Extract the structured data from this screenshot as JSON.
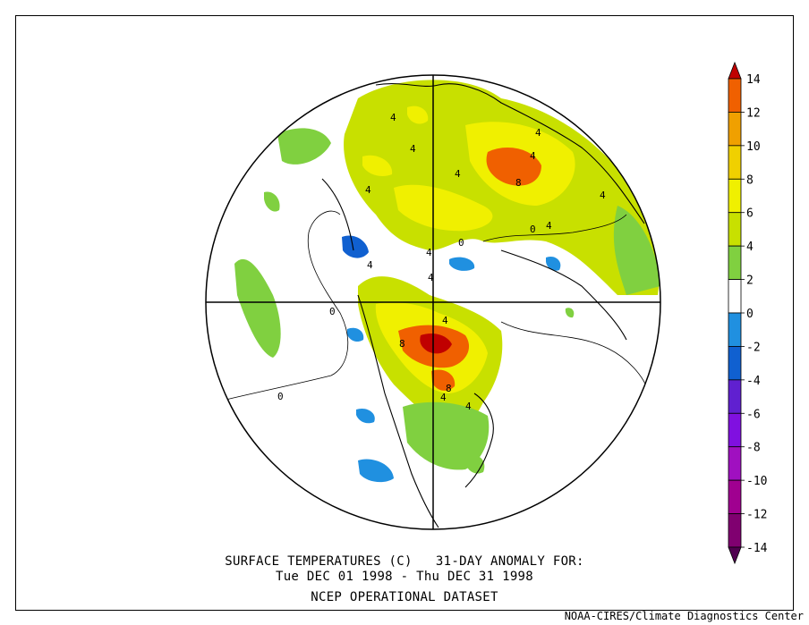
{
  "caption": {
    "line1": "SURFACE TEMPERATURES (C)   31-DAY ANOMALY FOR:",
    "line2": "Tue DEC 01 1998 - Thu DEC 31 1998",
    "line3": "NCEP OPERATIONAL DATASET"
  },
  "credit": "NOAA-CIRES/Climate Diagnostics Center",
  "colorbar": {
    "labels": [
      "14",
      "12",
      "10",
      "8",
      "6",
      "4",
      "2",
      "0",
      "-2",
      "-4",
      "-6",
      "-8",
      "-10",
      "-12",
      "-14"
    ],
    "colors": [
      "#c00000",
      "#f06000",
      "#f0a000",
      "#f0d000",
      "#f0f000",
      "#c8e000",
      "#80d040",
      "#ffffff",
      "#2090e0",
      "#1060d0",
      "#6020d0",
      "#8010e0",
      "#a010c0",
      "#a00090",
      "#800070",
      "#500050"
    ]
  },
  "map": {
    "contour_labels": [
      "4",
      "4",
      "4",
      "4",
      "4",
      "8",
      "4",
      "0",
      "4",
      "4",
      "4",
      "0",
      "4",
      "0",
      "4",
      "8",
      "4",
      "8",
      "4",
      "4",
      "0"
    ],
    "colors": {
      "green": "#80d040",
      "yellowgreen": "#c8e000",
      "yellow": "#f0f000",
      "gold": "#f0d000",
      "orange": "#f06000",
      "red": "#c00000",
      "lightblue": "#2090e0",
      "blue": "#1060d0"
    }
  }
}
